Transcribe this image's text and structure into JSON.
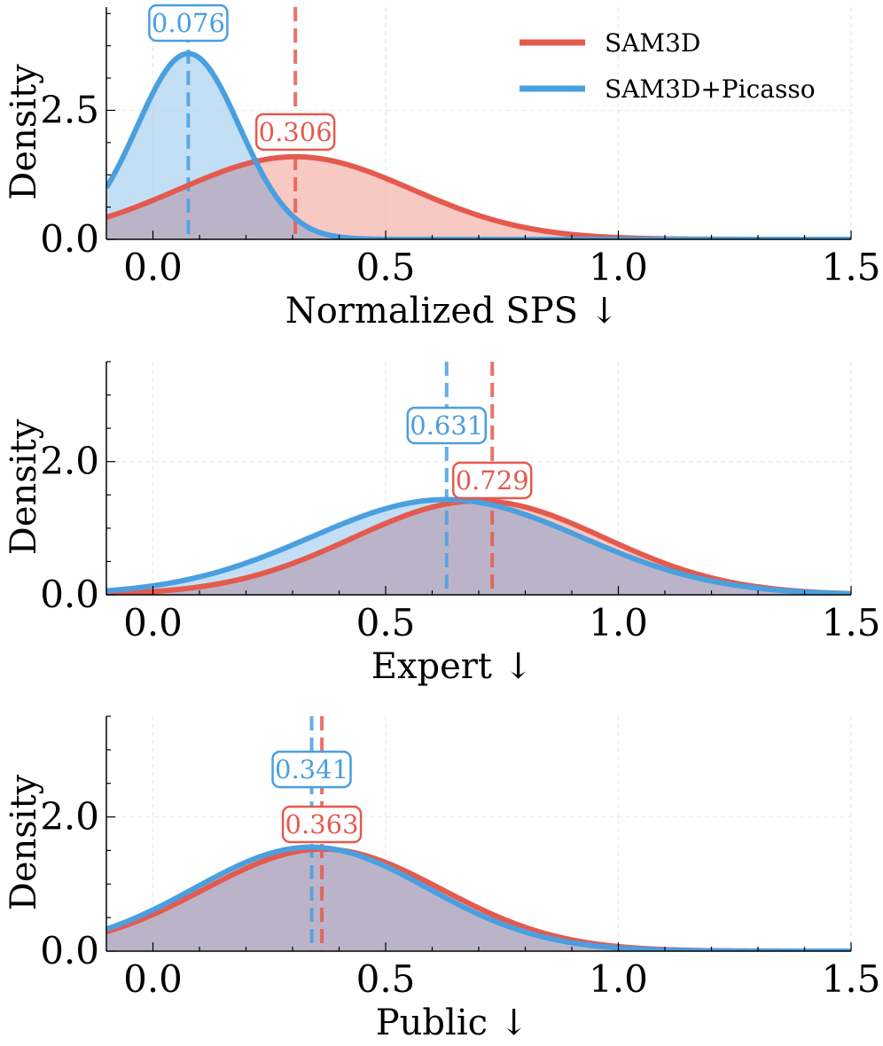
{
  "chart_data": [
    {
      "type": "area",
      "xlabel": "Normalized SPS ↓",
      "ylabel": "Density",
      "xlim": [
        -0.1,
        1.5
      ],
      "ylim": [
        0,
        4.5
      ],
      "xticks": [
        "0.0",
        "0.5",
        "1.0",
        "1.5"
      ],
      "xtick_values": [
        0.0,
        0.5,
        1.0,
        1.5
      ],
      "yticks": [
        "0.0",
        "2.5"
      ],
      "ytick_values": [
        0.0,
        2.5
      ],
      "grid": true,
      "legend": {
        "placement": "top-right",
        "entries": [
          "SAM3D",
          "SAM3D+Picasso"
        ]
      },
      "series": [
        {
          "name": "SAM3D",
          "color": "#e45a4e",
          "fill": "#f5b0aa",
          "mean": 0.306,
          "std": 0.25,
          "peak": 1.6,
          "marker": 0.306,
          "label": "0.306"
        },
        {
          "name": "SAM3D+Picasso",
          "color": "#4a9fe0",
          "fill": "#a9d1f1",
          "mean": 0.076,
          "std": 0.11,
          "peak": 3.6,
          "marker": 0.076,
          "label": "0.076"
        }
      ]
    },
    {
      "type": "area",
      "xlabel": "Expert ↓",
      "ylabel": "Density",
      "xlim": [
        -0.1,
        1.5
      ],
      "ylim": [
        0,
        3.5
      ],
      "xticks": [
        "0.0",
        "0.5",
        "1.0",
        "1.5"
      ],
      "xtick_values": [
        0.0,
        0.5,
        1.0,
        1.5
      ],
      "yticks": [
        "0.0",
        "2.0"
      ],
      "ytick_values": [
        0.0,
        2.0
      ],
      "grid": true,
      "series": [
        {
          "name": "SAM3D",
          "color": "#e45a4e",
          "fill": "#f5b0aa",
          "mean": 0.7,
          "std": 0.27,
          "peak": 1.41,
          "marker": 0.729,
          "label": "0.729"
        },
        {
          "name": "SAM3D+Picasso",
          "color": "#4a9fe0",
          "fill": "#a9d1f1",
          "mean": 0.63,
          "std": 0.29,
          "peak": 1.43,
          "marker": 0.631,
          "label": "0.631"
        }
      ]
    },
    {
      "type": "area",
      "xlabel": "Public ↓",
      "ylabel": "Density",
      "xlim": [
        -0.1,
        1.5
      ],
      "ylim": [
        0,
        3.5
      ],
      "xticks": [
        "0.0",
        "0.5",
        "1.0",
        "1.5"
      ],
      "xtick_values": [
        0.0,
        0.5,
        1.0,
        1.5
      ],
      "yticks": [
        "0.0",
        "2.0"
      ],
      "ytick_values": [
        0.0,
        2.0
      ],
      "grid": true,
      "series": [
        {
          "name": "SAM3D",
          "color": "#e45a4e",
          "fill": "#f5b0aa",
          "mean": 0.365,
          "std": 0.255,
          "peak": 1.52,
          "marker": 0.363,
          "label": "0.363"
        },
        {
          "name": "SAM3D+Picasso",
          "color": "#4a9fe0",
          "fill": "#a9d1f1",
          "mean": 0.34,
          "std": 0.25,
          "peak": 1.55,
          "marker": 0.341,
          "label": "0.341"
        }
      ]
    }
  ]
}
